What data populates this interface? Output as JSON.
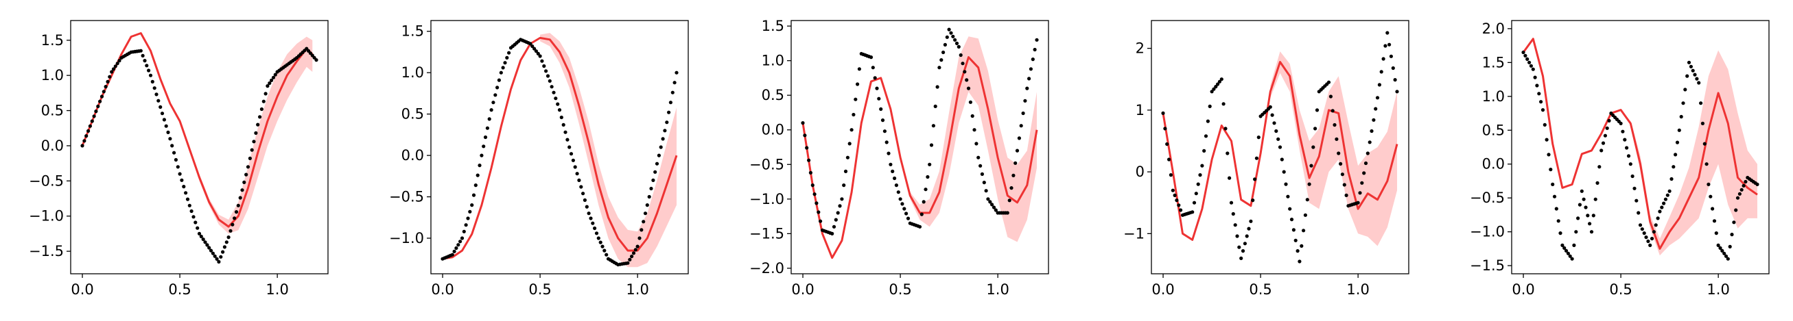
{
  "chart_data": [
    {
      "type": "line",
      "title": "",
      "xlabel": "",
      "ylabel": "",
      "xlim": [
        -0.06,
        1.26
      ],
      "ylim": [
        -1.82,
        1.78
      ],
      "xticks": [
        0.0,
        0.5,
        1.0
      ],
      "xtick_labels": [
        "0.0",
        "0.5",
        "1.0"
      ],
      "yticks": [
        -1.5,
        -1.0,
        -0.5,
        0.0,
        0.5,
        1.0,
        1.5
      ],
      "ytick_labels": [
        "−1.5",
        "−1.0",
        "−0.5",
        "0.0",
        "0.5",
        "1.0",
        "1.5"
      ],
      "grid": false,
      "series": [
        {
          "kind": "points",
          "color": "#000000",
          "x": [
            0.0,
            0.05,
            0.1,
            0.15,
            0.2,
            0.25,
            0.3,
            0.35,
            0.4,
            0.45,
            0.5,
            0.55,
            0.6,
            0.65,
            0.7,
            0.75,
            0.8,
            0.85,
            0.9,
            0.95,
            1.0,
            1.05,
            1.1,
            1.15,
            1.2
          ],
          "y": [
            0.0,
            0.35,
            0.7,
            1.05,
            1.25,
            1.33,
            1.35,
            1.0,
            0.55,
            0.1,
            -0.4,
            -0.85,
            -1.25,
            -1.45,
            -1.65,
            -1.3,
            -0.85,
            -0.3,
            0.3,
            0.85,
            1.05,
            1.15,
            1.25,
            1.38,
            1.22
          ]
        },
        {
          "kind": "mean",
          "color": "#ee3333",
          "x": [
            0.0,
            0.05,
            0.1,
            0.15,
            0.2,
            0.25,
            0.3,
            0.35,
            0.4,
            0.45,
            0.5,
            0.55,
            0.6,
            0.65,
            0.7,
            0.75,
            0.8,
            0.85,
            0.9,
            0.95,
            1.0,
            1.05,
            1.1,
            1.15,
            1.18
          ],
          "y": [
            0.0,
            0.35,
            0.7,
            1.0,
            1.3,
            1.55,
            1.6,
            1.35,
            0.95,
            0.6,
            0.35,
            -0.05,
            -0.45,
            -0.8,
            -1.05,
            -1.15,
            -1.0,
            -0.6,
            -0.1,
            0.35,
            0.7,
            1.0,
            1.2,
            1.38,
            1.3
          ]
        },
        {
          "kind": "band",
          "color": "#ff9999",
          "alpha": 0.5,
          "x": [
            0.55,
            0.6,
            0.65,
            0.7,
            0.75,
            0.8,
            0.85,
            0.9,
            0.95,
            1.0,
            1.05,
            1.1,
            1.15,
            1.18
          ],
          "lower": [
            -0.08,
            -0.5,
            -0.85,
            -1.12,
            -1.25,
            -1.2,
            -0.9,
            -0.45,
            0.0,
            0.35,
            0.65,
            0.9,
            1.12,
            1.05
          ],
          "upper": [
            -0.02,
            -0.4,
            -0.75,
            -0.98,
            -1.05,
            -0.8,
            -0.3,
            0.25,
            0.7,
            1.05,
            1.3,
            1.45,
            1.55,
            1.5
          ]
        }
      ]
    },
    {
      "type": "line",
      "title": "",
      "xlabel": "",
      "ylabel": "",
      "xlim": [
        -0.06,
        1.26
      ],
      "ylim": [
        -1.43,
        1.63
      ],
      "xticks": [
        0.0,
        0.5,
        1.0
      ],
      "xtick_labels": [
        "0.0",
        "0.5",
        "1.0"
      ],
      "yticks": [
        -1.0,
        -0.5,
        0.0,
        0.5,
        1.0,
        1.5
      ],
      "ytick_labels": [
        "−1.0",
        "−0.5",
        "0.0",
        "0.5",
        "1.0",
        "1.5"
      ],
      "grid": false,
      "series": [
        {
          "kind": "points",
          "color": "#000000",
          "x": [
            0.0,
            0.05,
            0.1,
            0.15,
            0.2,
            0.25,
            0.3,
            0.35,
            0.4,
            0.45,
            0.5,
            0.55,
            0.6,
            0.65,
            0.7,
            0.75,
            0.8,
            0.85,
            0.9,
            0.95,
            1.0,
            1.05,
            1.1,
            1.15,
            1.2
          ],
          "y": [
            -1.25,
            -1.2,
            -1.0,
            -0.6,
            0.0,
            0.55,
            1.0,
            1.3,
            1.4,
            1.35,
            1.2,
            0.9,
            0.55,
            0.1,
            -0.3,
            -0.7,
            -1.0,
            -1.25,
            -1.32,
            -1.3,
            -1.1,
            -0.6,
            -0.1,
            0.4,
            1.0
          ]
        },
        {
          "kind": "mean",
          "color": "#ee3333",
          "x": [
            0.0,
            0.05,
            0.1,
            0.15,
            0.2,
            0.25,
            0.3,
            0.35,
            0.4,
            0.45,
            0.5,
            0.55,
            0.6,
            0.65,
            0.7,
            0.75,
            0.8,
            0.85,
            0.9,
            0.95,
            1.0,
            1.05,
            1.1,
            1.15,
            1.2
          ],
          "y": [
            -1.25,
            -1.23,
            -1.15,
            -0.95,
            -0.6,
            -0.15,
            0.35,
            0.8,
            1.15,
            1.35,
            1.42,
            1.4,
            1.25,
            1.0,
            0.6,
            0.15,
            -0.35,
            -0.75,
            -1.0,
            -1.15,
            -1.15,
            -1.0,
            -0.7,
            -0.35,
            0.0
          ]
        },
        {
          "kind": "band",
          "color": "#ff9999",
          "alpha": 0.5,
          "x": [
            0.5,
            0.55,
            0.6,
            0.65,
            0.7,
            0.75,
            0.8,
            0.85,
            0.9,
            0.95,
            1.0,
            1.05,
            1.1,
            1.15,
            1.2
          ],
          "lower": [
            1.38,
            1.32,
            1.12,
            0.82,
            0.38,
            -0.1,
            -0.6,
            -1.0,
            -1.25,
            -1.35,
            -1.35,
            -1.3,
            -1.1,
            -0.85,
            -0.6
          ],
          "upper": [
            1.46,
            1.48,
            1.38,
            1.18,
            0.82,
            0.4,
            -0.1,
            -0.5,
            -0.75,
            -0.9,
            -0.92,
            -0.7,
            -0.3,
            0.15,
            0.58
          ]
        }
      ]
    },
    {
      "type": "line",
      "title": "",
      "xlabel": "",
      "ylabel": "",
      "xlim": [
        -0.06,
        1.26
      ],
      "ylim": [
        -2.08,
        1.58
      ],
      "xticks": [
        0.0,
        0.5,
        1.0
      ],
      "xtick_labels": [
        "0.0",
        "0.5",
        "1.0"
      ],
      "yticks": [
        -2.0,
        -1.5,
        -1.0,
        -0.5,
        0.0,
        0.5,
        1.0,
        1.5
      ],
      "ytick_labels": [
        "−2.0",
        "−1.5",
        "−1.0",
        "−0.5",
        "0.0",
        "0.5",
        "1.0",
        "1.5"
      ],
      "grid": false,
      "series": [
        {
          "kind": "points",
          "color": "#000000",
          "x": [
            0.0,
            0.05,
            0.1,
            0.15,
            0.2,
            0.25,
            0.3,
            0.35,
            0.4,
            0.45,
            0.5,
            0.55,
            0.6,
            0.65,
            0.7,
            0.75,
            0.8,
            0.85,
            0.9,
            0.95,
            1.0,
            1.05,
            1.1,
            1.15,
            1.2
          ],
          "y": [
            0.1,
            -0.8,
            -1.45,
            -1.5,
            -1.0,
            0.0,
            1.1,
            1.05,
            0.3,
            -0.5,
            -1.0,
            -1.35,
            -1.4,
            -0.5,
            0.9,
            1.45,
            1.2,
            0.6,
            -0.4,
            -1.0,
            -1.2,
            -1.2,
            -0.3,
            0.6,
            1.3
          ]
        },
        {
          "kind": "mean",
          "color": "#ee3333",
          "x": [
            0.0,
            0.05,
            0.1,
            0.15,
            0.2,
            0.25,
            0.3,
            0.35,
            0.4,
            0.45,
            0.5,
            0.55,
            0.6,
            0.65,
            0.7,
            0.75,
            0.8,
            0.85,
            0.9,
            0.95,
            1.0,
            1.05,
            1.1,
            1.15,
            1.2
          ],
          "y": [
            0.1,
            -0.8,
            -1.5,
            -1.85,
            -1.6,
            -0.9,
            0.1,
            0.7,
            0.75,
            0.3,
            -0.4,
            -0.95,
            -1.2,
            -1.2,
            -0.9,
            -0.2,
            0.6,
            1.05,
            0.9,
            0.3,
            -0.4,
            -0.95,
            -1.05,
            -0.8,
            0.0
          ]
        },
        {
          "kind": "band",
          "color": "#ff9999",
          "alpha": 0.5,
          "x": [
            0.55,
            0.6,
            0.65,
            0.7,
            0.75,
            0.8,
            0.85,
            0.9,
            0.95,
            1.0,
            1.05,
            1.1,
            1.15,
            1.2
          ],
          "lower": [
            -1.0,
            -1.3,
            -1.4,
            -1.2,
            -0.65,
            0.1,
            0.55,
            0.35,
            -0.3,
            -1.0,
            -1.55,
            -1.62,
            -1.3,
            -0.55
          ],
          "upper": [
            -0.9,
            -1.08,
            -1.0,
            -0.6,
            0.25,
            1.05,
            1.35,
            1.32,
            0.85,
            0.15,
            -0.4,
            -0.5,
            -0.3,
            0.55
          ]
        }
      ]
    },
    {
      "type": "line",
      "title": "",
      "xlabel": "",
      "ylabel": "",
      "xlim": [
        -0.06,
        1.26
      ],
      "ylim": [
        -1.65,
        2.45
      ],
      "xticks": [
        0.0,
        0.5,
        1.0
      ],
      "xtick_labels": [
        "0.0",
        "0.5",
        "1.0"
      ],
      "yticks": [
        -1,
        0,
        1,
        2
      ],
      "ytick_labels": [
        "−1",
        "0",
        "1",
        "2"
      ],
      "grid": false,
      "series": [
        {
          "kind": "points",
          "color": "#000000",
          "x": [
            0.0,
            0.05,
            0.1,
            0.15,
            0.2,
            0.25,
            0.3,
            0.35,
            0.4,
            0.45,
            0.5,
            0.55,
            0.6,
            0.65,
            0.7,
            0.75,
            0.8,
            0.85,
            0.9,
            0.95,
            1.0,
            1.05,
            1.1,
            1.15,
            1.2
          ],
          "y": [
            0.95,
            -0.3,
            -0.7,
            -0.65,
            0.1,
            1.3,
            1.5,
            -0.5,
            -1.4,
            -0.8,
            0.9,
            1.05,
            0.4,
            -0.6,
            -1.45,
            -0.2,
            1.3,
            1.45,
            0.3,
            -0.55,
            -0.5,
            0.3,
            1.2,
            2.25,
            1.3
          ]
        },
        {
          "kind": "mean",
          "color": "#ee3333",
          "x": [
            0.0,
            0.05,
            0.1,
            0.15,
            0.2,
            0.25,
            0.3,
            0.35,
            0.4,
            0.45,
            0.5,
            0.55,
            0.6,
            0.65,
            0.7,
            0.75,
            0.8,
            0.85,
            0.9,
            0.95,
            1.0,
            1.05,
            1.1,
            1.15,
            1.2
          ],
          "y": [
            0.95,
            0.0,
            -1.0,
            -1.1,
            -0.6,
            0.2,
            0.75,
            0.5,
            -0.45,
            -0.55,
            0.3,
            1.3,
            1.78,
            1.55,
            0.6,
            -0.1,
            0.25,
            1.0,
            0.95,
            0.0,
            -0.6,
            -0.35,
            -0.45,
            -0.15,
            0.45
          ]
        },
        {
          "kind": "band",
          "color": "#ff9999",
          "alpha": 0.5,
          "x": [
            0.55,
            0.6,
            0.65,
            0.7,
            0.75,
            0.8,
            0.85,
            0.9,
            0.95,
            1.0,
            1.05,
            1.1,
            1.15,
            1.2
          ],
          "lower": [
            1.2,
            1.6,
            1.3,
            0.35,
            -0.5,
            -0.6,
            0.0,
            0.2,
            -0.6,
            -1.0,
            -1.05,
            -1.2,
            -0.9,
            -0.3
          ],
          "upper": [
            1.4,
            1.95,
            1.75,
            1.0,
            0.5,
            0.7,
            1.3,
            1.55,
            0.8,
            0.1,
            0.3,
            0.4,
            0.65,
            1.3
          ]
        }
      ]
    },
    {
      "type": "line",
      "title": "",
      "xlabel": "",
      "ylabel": "",
      "xlim": [
        -0.06,
        1.26
      ],
      "ylim": [
        -1.62,
        2.12
      ],
      "xticks": [
        0.0,
        0.5,
        1.0
      ],
      "xtick_labels": [
        "0.0",
        "0.5",
        "1.0"
      ],
      "yticks": [
        -1.5,
        -1.0,
        -0.5,
        0.0,
        0.5,
        1.0,
        1.5,
        2.0
      ],
      "ytick_labels": [
        "−1.5",
        "−1.0",
        "−0.5",
        "0.0",
        "0.5",
        "1.0",
        "1.5",
        "2.0"
      ],
      "grid": false,
      "series": [
        {
          "kind": "points",
          "color": "#000000",
          "x": [
            0.0,
            0.05,
            0.1,
            0.15,
            0.2,
            0.25,
            0.3,
            0.35,
            0.4,
            0.45,
            0.5,
            0.55,
            0.6,
            0.65,
            0.7,
            0.75,
            0.8,
            0.85,
            0.9,
            0.95,
            1.0,
            1.05,
            1.1,
            1.15,
            1.2
          ],
          "y": [
            1.65,
            1.4,
            0.8,
            -0.3,
            -1.2,
            -1.4,
            -0.4,
            -1.0,
            0.2,
            0.75,
            0.6,
            0.0,
            -0.9,
            -1.2,
            -0.7,
            -0.4,
            0.5,
            1.5,
            1.2,
            -0.3,
            -1.2,
            -1.4,
            -0.5,
            -0.2,
            -0.3
          ]
        },
        {
          "kind": "mean",
          "color": "#ee3333",
          "x": [
            0.0,
            0.05,
            0.1,
            0.15,
            0.2,
            0.25,
            0.3,
            0.35,
            0.4,
            0.45,
            0.5,
            0.55,
            0.6,
            0.65,
            0.7,
            0.75,
            0.8,
            0.85,
            0.9,
            0.95,
            1.0,
            1.05,
            1.1,
            1.15,
            1.2
          ],
          "y": [
            1.65,
            1.85,
            1.3,
            0.3,
            -0.35,
            -0.3,
            0.15,
            0.2,
            0.45,
            0.75,
            0.8,
            0.6,
            0.0,
            -0.85,
            -1.25,
            -1.0,
            -0.8,
            -0.5,
            -0.2,
            0.5,
            1.05,
            0.6,
            -0.2,
            -0.35,
            -0.45
          ]
        },
        {
          "kind": "band",
          "color": "#ff9999",
          "alpha": 0.5,
          "x": [
            0.55,
            0.6,
            0.65,
            0.7,
            0.75,
            0.8,
            0.85,
            0.9,
            0.95,
            1.0,
            1.05,
            1.1,
            1.15,
            1.2
          ],
          "lower": [
            0.55,
            -0.1,
            -0.95,
            -1.35,
            -1.2,
            -1.1,
            -0.95,
            -0.8,
            -0.35,
            0.0,
            -0.6,
            -0.95,
            -0.8,
            -0.8
          ],
          "upper": [
            0.65,
            0.12,
            -0.75,
            -1.1,
            -0.78,
            -0.45,
            -0.05,
            0.55,
            1.3,
            1.68,
            1.4,
            0.75,
            0.2,
            0.0
          ]
        }
      ]
    }
  ]
}
